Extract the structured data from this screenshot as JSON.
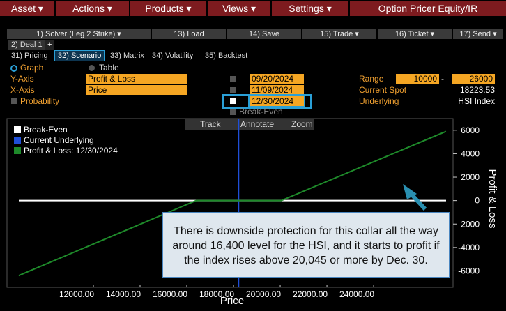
{
  "menu": [
    "Asset",
    "Actions",
    "Products",
    "Views",
    "Settings"
  ],
  "app_title": "Option Pricer Equity/IR",
  "toolbar": [
    "1) Solver (Leg 2 Strike)",
    "13) Load",
    "14) Save",
    "15) Trade",
    "16) Ticket",
    "17) Send"
  ],
  "deal_tab": "2) Deal 1",
  "add_tab": "+",
  "tabs": [
    "31) Pricing",
    "32) Scenario",
    "33) Matrix",
    "34) Volatility",
    "35) Backtest"
  ],
  "view_options": [
    "Graph",
    "Table"
  ],
  "y_axis_label": "Y-Axis",
  "y_axis_value": "Profit & Loss",
  "x_axis_label": "X-Axis",
  "x_axis_value": "Price",
  "probability": "Probability",
  "dates": [
    "09/20/2024",
    "11/09/2024",
    "12/30/2024"
  ],
  "break_even_option": "Break-Even",
  "range_label": "Range",
  "range_from": "10000",
  "range_separator": "-",
  "range_to": "26000",
  "spot_label": "Current Spot",
  "spot": "18223.53",
  "underlying_label": "Underlying",
  "underlying": "HSI Index",
  "chart_tools": [
    "Track",
    "Annotate",
    "Zoom"
  ],
  "chart_data": {
    "type": "line",
    "x_label": "Price",
    "y_label": "Profit & Loss",
    "xlim": [
      8300,
      27400
    ],
    "ylim": [
      -7400,
      7000
    ],
    "xticks": [
      {
        "value": 12000,
        "label": "12000.00"
      },
      {
        "value": 14000,
        "label": "14000.00"
      },
      {
        "value": 16000,
        "label": "16000.00"
      },
      {
        "value": 18000,
        "label": "18000.00"
      },
      {
        "value": 20000,
        "label": "20000.00"
      },
      {
        "value": 22000,
        "label": "22000.00"
      },
      {
        "value": 24000,
        "label": "24000.00"
      }
    ],
    "yticks": [
      6000,
      4000,
      2000,
      0,
      -2000,
      -4000,
      -6000
    ],
    "reference_lines": [
      {
        "name": "Break-Even",
        "axis": "y",
        "value": 0,
        "color": "#ffffff"
      },
      {
        "name": "Current Underlying",
        "axis": "x",
        "value": 18223.53,
        "color": "#1f4fd8"
      }
    ],
    "series": [
      {
        "name": "Profit & Loss: 12/30/2024",
        "color": "#1e8a2a",
        "x": [
          8800,
          16400,
          20045,
          27100
        ],
        "values": [
          -6400,
          0,
          0,
          5900
        ]
      }
    ]
  },
  "annotation": [
    "There is downside protection for this collar all the way",
    "around 16,400 level for the HSI, and it starts to profit if",
    "the index rises above 20,045 or more by Dec. 30."
  ]
}
